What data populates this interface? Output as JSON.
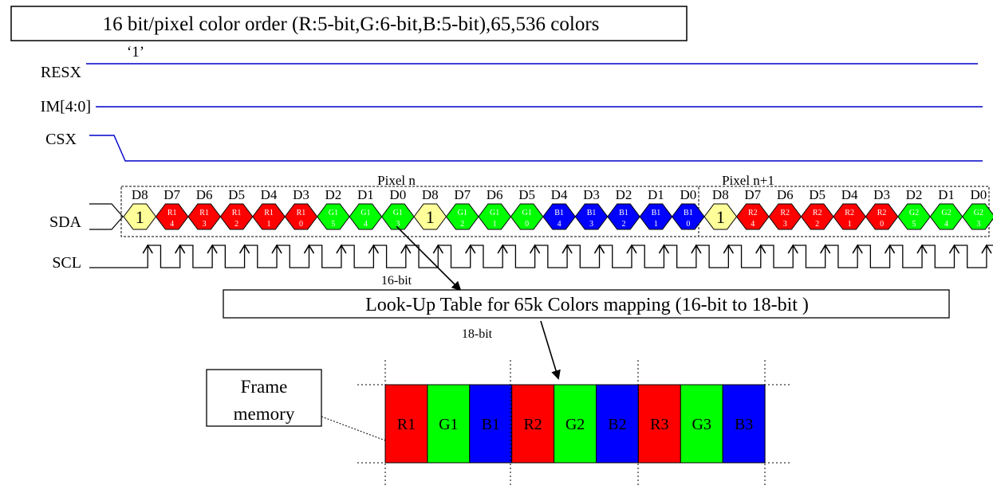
{
  "title": "16 bit/pixel color order (R:5-bit,G:6-bit,B:5-bit),65,536 colors",
  "resx_level_label": "‘1’",
  "signals": {
    "resx": "RESX",
    "im": "IM[4:0]",
    "csx": "CSX",
    "sda": "SDA",
    "scl": "SCL"
  },
  "pixel_labels": [
    "Pixel n",
    "Pixel n+1"
  ],
  "bit_labels": [
    "D8",
    "D7",
    "D6",
    "D5",
    "D4",
    "D3",
    "D2",
    "D1",
    "D0",
    "D8",
    "D7",
    "D6",
    "D5",
    "D4",
    "D3",
    "D2",
    "D1",
    "D0",
    "D8",
    "D7",
    "D6",
    "D5",
    "D4",
    "D3",
    "D2",
    "D1",
    "D0"
  ],
  "sda_cells": [
    {
      "top": "1",
      "bottom": "",
      "fill": "#ffff99",
      "text_color": "#000000"
    },
    {
      "top": "R1",
      "bottom": "4",
      "fill": "#ff0000",
      "text_color": "#ffffff"
    },
    {
      "top": "R1",
      "bottom": "3",
      "fill": "#ff0000",
      "text_color": "#ffffff"
    },
    {
      "top": "R1",
      "bottom": "2",
      "fill": "#ff0000",
      "text_color": "#ffffff"
    },
    {
      "top": "R1",
      "bottom": "1",
      "fill": "#ff0000",
      "text_color": "#ffffff"
    },
    {
      "top": "R1",
      "bottom": "0",
      "fill": "#ff0000",
      "text_color": "#ffffff"
    },
    {
      "top": "G1",
      "bottom": "5",
      "fill": "#00ff00",
      "text_color": "#ffffff"
    },
    {
      "top": "G1",
      "bottom": "4",
      "fill": "#00ff00",
      "text_color": "#ffffff"
    },
    {
      "top": "G1",
      "bottom": "3",
      "fill": "#00ff00",
      "text_color": "#ffffff"
    },
    {
      "top": "1",
      "bottom": "",
      "fill": "#ffff99",
      "text_color": "#000000"
    },
    {
      "top": "G1",
      "bottom": "2",
      "fill": "#00ff00",
      "text_color": "#ffffff"
    },
    {
      "top": "G1",
      "bottom": "1",
      "fill": "#00ff00",
      "text_color": "#ffffff"
    },
    {
      "top": "G1",
      "bottom": "0",
      "fill": "#00ff00",
      "text_color": "#ffffff"
    },
    {
      "top": "B1",
      "bottom": "4",
      "fill": "#0000ff",
      "text_color": "#ffffff"
    },
    {
      "top": "B1",
      "bottom": "3",
      "fill": "#0000ff",
      "text_color": "#ffffff"
    },
    {
      "top": "B1",
      "bottom": "2",
      "fill": "#0000ff",
      "text_color": "#ffffff"
    },
    {
      "top": "B1",
      "bottom": "1",
      "fill": "#0000ff",
      "text_color": "#ffffff"
    },
    {
      "top": "B1",
      "bottom": "0",
      "fill": "#0000ff",
      "text_color": "#ffffff"
    },
    {
      "top": "1",
      "bottom": "",
      "fill": "#ffff99",
      "text_color": "#000000"
    },
    {
      "top": "R2",
      "bottom": "4",
      "fill": "#ff0000",
      "text_color": "#ffffff"
    },
    {
      "top": "R2",
      "bottom": "3",
      "fill": "#ff0000",
      "text_color": "#ffffff"
    },
    {
      "top": "R2",
      "bottom": "2",
      "fill": "#ff0000",
      "text_color": "#ffffff"
    },
    {
      "top": "R2",
      "bottom": "1",
      "fill": "#ff0000",
      "text_color": "#ffffff"
    },
    {
      "top": "R2",
      "bottom": "0",
      "fill": "#ff0000",
      "text_color": "#ffffff"
    },
    {
      "top": "G2",
      "bottom": "5",
      "fill": "#00ff00",
      "text_color": "#ffffff"
    },
    {
      "top": "G2",
      "bottom": "4",
      "fill": "#00ff00",
      "text_color": "#ffffff"
    },
    {
      "top": "G2",
      "bottom": "3",
      "fill": "#00ff00",
      "text_color": "#ffffff"
    }
  ],
  "label_16bit": "16-bit",
  "lut_label": "Look-Up Table for 65k Colors mapping (16-bit to 18-bit )",
  "label_18bit": "18-bit",
  "frame_memory_lines": [
    "Frame",
    "memory"
  ],
  "frame_cells": [
    {
      "label": "R1",
      "fill": "#ff0000"
    },
    {
      "label": "G1",
      "fill": "#00ff00"
    },
    {
      "label": "B1",
      "fill": "#0000ff"
    },
    {
      "label": "R2",
      "fill": "#ff0000"
    },
    {
      "label": "G2",
      "fill": "#00ff00"
    },
    {
      "label": "B2",
      "fill": "#0000ff"
    },
    {
      "label": "R3",
      "fill": "#ff0000"
    },
    {
      "label": "G3",
      "fill": "#00ff00"
    },
    {
      "label": "B3",
      "fill": "#0000ff"
    }
  ],
  "colors": {
    "signal_line": "#0000cc",
    "outline": "#000000"
  }
}
